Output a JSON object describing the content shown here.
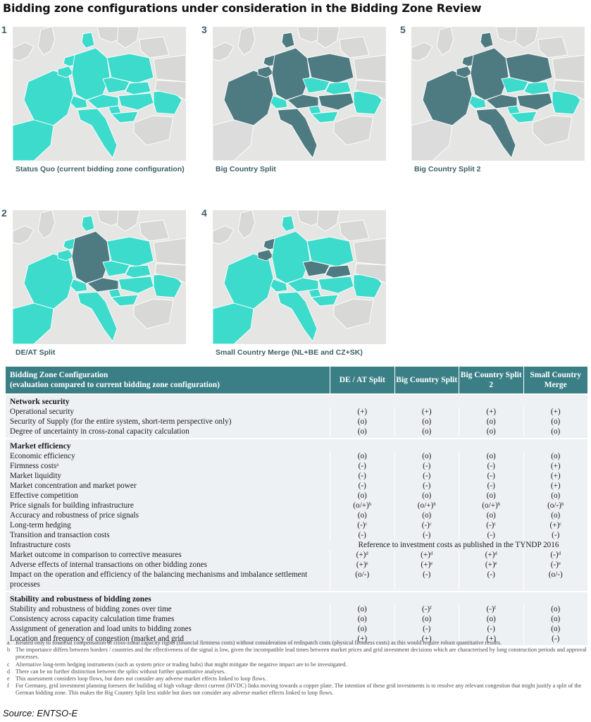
{
  "title": "Bidding zone configurations under consideration in the Bidding Zone Review",
  "colors": {
    "teal": "#3ddbcc",
    "dark": "#4e7b82",
    "mid": "#3fb7b0",
    "sea": "#e5e6e4",
    "header": "#3b7f86",
    "row_bg": "#eef1f4"
  },
  "maps": [
    {
      "num": "1",
      "caption": "Status Quo (current bidding zone configuration)",
      "scheme": "status-quo"
    },
    {
      "num": "3",
      "caption": "Big Country Split",
      "scheme": "big-split"
    },
    {
      "num": "5",
      "caption": "Big Country Split 2",
      "scheme": "big-split-2"
    },
    {
      "num": "2",
      "caption": "DE/AT Split",
      "scheme": "de-at"
    },
    {
      "num": "4",
      "caption": "Small Country Merge (NL+BE and CZ+SK)",
      "scheme": "small-merge"
    }
  ],
  "table": {
    "header": {
      "label1": "Bidding Zone Configuration",
      "label2": "(evaluation compared to current bidding zone configuration)",
      "cols": [
        "DE / AT Split",
        "Big Country Split",
        "Big Country Split 2",
        "Small Country Merge"
      ]
    },
    "sections": [
      {
        "title": "Network security",
        "rows": [
          {
            "label": "Operational security",
            "values": [
              "(+)",
              "(+)",
              "(+)",
              "(+)"
            ]
          },
          {
            "label": "Security of Supply (for the entire system, short-term perspective only)",
            "values": [
              "(o)",
              "(o)",
              "(o)",
              "(o)"
            ]
          },
          {
            "label": "Degree of uncertainty in cross-zonal capacity calculation",
            "values": [
              "(o)",
              "(o)",
              "(o)",
              "(o)"
            ]
          }
        ]
      },
      {
        "title": "Market efficiency",
        "rows": [
          {
            "label": "Economic efficiency",
            "values": [
              "(o)",
              "(o)",
              "(o)",
              "(o)"
            ]
          },
          {
            "label": "Firmness costsᵃ",
            "values": [
              "(-)",
              "(-)",
              "(-)",
              "(+)"
            ]
          },
          {
            "label": "Market liquidity",
            "values": [
              "(-)",
              "(-)",
              "(-)",
              "(+)"
            ]
          },
          {
            "label": "Market concentration and market power",
            "values": [
              "(-)",
              "(-)",
              "(-)",
              "(+)"
            ]
          },
          {
            "label": "Effective competition",
            "values": [
              "(o)",
              "(o)",
              "(o)",
              "(o)"
            ]
          },
          {
            "label": "Price signals for building infrastructure",
            "values": [
              "(o/+)ᵇ",
              "(o/+)ᵇ",
              "(o/+)ᵇ",
              "(o/-)ᵇ"
            ]
          },
          {
            "label": "Accuracy and robustness of price signals",
            "values": [
              "(o)",
              "(o)",
              "(o)",
              "(o)"
            ]
          },
          {
            "label": "Long-term hedging",
            "values": [
              "(-)ᶜ",
              "(-)ᶜ",
              "(-)ᶜ",
              "(+)ᶜ"
            ]
          },
          {
            "label": "Transition and transaction costs",
            "values": [
              "(-)",
              "(-)",
              "(-)",
              "(-)"
            ]
          },
          {
            "label": "Infrastructure costs",
            "span": "Reference to investment costs as published in the TYNDP 2016"
          },
          {
            "label": "Market outcome in comparison to corrective measures",
            "values": [
              "(+)ᵈ",
              "(+)ᵈ",
              "(+)ᵈ",
              "(-)ᵈ"
            ]
          },
          {
            "label": "Adverse effects of internal transactions on other bidding zones",
            "values": [
              "(+)ᵉ",
              "(+)ᵉ",
              "(+)ᵉ",
              "(-)ᵉ"
            ]
          },
          {
            "label": "Impact on the operation and efficiency of the balancing mechanisms and imbalance settlement processes",
            "values": [
              "(o/-)",
              "(-)",
              "(-)",
              "(o/-)"
            ],
            "tall": true
          }
        ]
      },
      {
        "title": "Stability and robustness of bidding zones",
        "rows": [
          {
            "label": "Stability and robustness of bidding zones over time",
            "values": [
              "(o)",
              "(-)ᶠ",
              "(-)ᶠ",
              "(o)"
            ]
          },
          {
            "label": "Consistency across capacity calculation time frames",
            "values": [
              "(o)",
              "(o)",
              "(o)",
              "(o)"
            ]
          },
          {
            "label": "Assignment of generation and load units to bidding zones",
            "values": [
              "(o)",
              "(-)",
              "(-)",
              "(o)"
            ]
          },
          {
            "label": "Location and frequency of congestion (market and grid",
            "values": [
              "(+)",
              "(+)",
              "(+)",
              "(-)"
            ]
          }
        ]
      }
    ]
  },
  "footnotes": [
    {
      "key": "a",
      "text": "Related only to financial compensation of cross-zonal capacity rights (financial firmness costs) without consideration of redispatch costs (physical firmness costs) as this would require robust quantitative results."
    },
    {
      "key": "b",
      "text": "The importance differs between borders / countries and the effectiveness of the signal is low, given the incompatible lead times between market prices and grid investment decisions which are characterised by long construction periods and approval processes."
    },
    {
      "key": "c",
      "text": "Alternative long-term hedging instruments (such as system price or trading hubs) that might mitigate the negative impact are to be investigated."
    },
    {
      "key": "d",
      "text": "There can be no further distinction between the splits without further quantitative analyses."
    },
    {
      "key": "e",
      "text": "This assessment considers loop flows, but does not consider any adverse market effects linked to loop flows."
    },
    {
      "key": "f",
      "text": "For Germany, grid investment planning foresees the building of high voltage direct current (HVDC) links moving towards a copper plate. The intention of these grid investments is to resolve any relevant congestion that might justify a split of the German bidding zone. This makes the Big Country Split less stable but does not consider any adverse market effects linked to loop flows."
    }
  ],
  "source": "Source: ENTSO-E"
}
